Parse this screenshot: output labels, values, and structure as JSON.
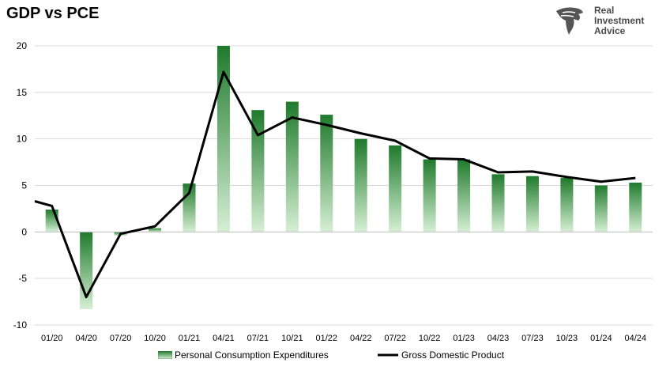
{
  "title": "GDP vs PCE",
  "logo": {
    "line1": "Real",
    "line2": "Investment",
    "line3": "Advice"
  },
  "colors": {
    "bar_dark": "#1f7a2c",
    "bar_light": "#d6efd4",
    "line": "#000000",
    "grid": "#d9d9d9"
  },
  "chart_data": {
    "type": "bar",
    "categories": [
      "01/20",
      "04/20",
      "07/20",
      "10/20",
      "01/21",
      "04/21",
      "07/21",
      "10/21",
      "01/22",
      "04/22",
      "07/22",
      "10/22",
      "01/23",
      "04/23",
      "07/23",
      "10/23",
      "01/24",
      "04/24"
    ],
    "ylim": [
      -10,
      20
    ],
    "yticks": [
      -10,
      -5,
      0,
      5,
      10,
      15,
      20
    ],
    "grid": true,
    "legend_position": "bottom",
    "series": [
      {
        "name": "Personal Consumption Expenditures",
        "type": "bar",
        "values": [
          2.4,
          -8.3,
          -0.4,
          0.4,
          5.2,
          20.0,
          13.1,
          14.0,
          12.6,
          10.0,
          9.3,
          7.8,
          7.8,
          6.2,
          6.0,
          5.8,
          5.0,
          5.3
        ]
      },
      {
        "name": "Gross Domestic Product",
        "type": "line",
        "x_start_value": 3.3,
        "values": [
          2.8,
          -7.0,
          -0.2,
          0.6,
          4.2,
          17.2,
          10.4,
          12.3,
          11.5,
          10.6,
          9.8,
          7.9,
          7.8,
          6.4,
          6.5,
          5.9,
          5.4,
          5.8
        ]
      }
    ]
  }
}
